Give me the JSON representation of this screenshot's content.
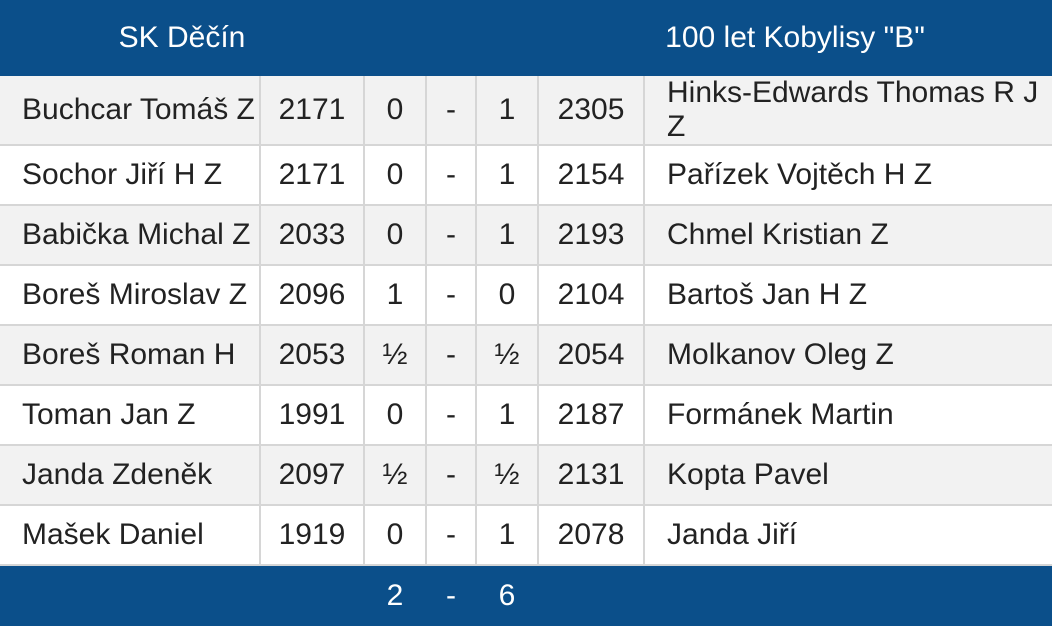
{
  "header": {
    "home_team": "SK Děčín",
    "away_team": "100 let Kobylisy \"B\""
  },
  "games": [
    {
      "home_player": "Buchcar Tomáš Z",
      "home_rating": "2171",
      "home_score": "0",
      "sep": "-",
      "away_score": "1",
      "away_rating": "2305",
      "away_player": "Hinks-Edwards Thomas R J Z"
    },
    {
      "home_player": "Sochor Jiří H Z",
      "home_rating": "2171",
      "home_score": "0",
      "sep": "-",
      "away_score": "1",
      "away_rating": "2154",
      "away_player": "Pařízek Vojtěch H Z"
    },
    {
      "home_player": "Babička Michal Z",
      "home_rating": "2033",
      "home_score": "0",
      "sep": "-",
      "away_score": "1",
      "away_rating": "2193",
      "away_player": "Chmel Kristian Z"
    },
    {
      "home_player": "Boreš Miroslav Z",
      "home_rating": "2096",
      "home_score": "1",
      "sep": "-",
      "away_score": "0",
      "away_rating": "2104",
      "away_player": "Bartoš Jan H Z"
    },
    {
      "home_player": "Boreš Roman H",
      "home_rating": "2053",
      "home_score": "½",
      "sep": "-",
      "away_score": "½",
      "away_rating": "2054",
      "away_player": "Molkanov Oleg Z"
    },
    {
      "home_player": "Toman Jan Z",
      "home_rating": "1991",
      "home_score": "0",
      "sep": "-",
      "away_score": "1",
      "away_rating": "2187",
      "away_player": "Formánek Martin"
    },
    {
      "home_player": "Janda Zdeněk",
      "home_rating": "2097",
      "home_score": "½",
      "sep": "-",
      "away_score": "½",
      "away_rating": "2131",
      "away_player": "Kopta Pavel"
    },
    {
      "home_player": "Mašek Daniel",
      "home_rating": "1919",
      "home_score": "0",
      "sep": "-",
      "away_score": "1",
      "away_rating": "2078",
      "away_player": "Janda Jiří"
    }
  ],
  "total": {
    "home_score": "2",
    "sep": "-",
    "away_score": "6"
  },
  "colors": {
    "header_bg": "#0b4f8a",
    "header_text": "#ffffff",
    "row_alt_bg": "#f2f2f2",
    "grid_line": "#d6d6d6"
  }
}
